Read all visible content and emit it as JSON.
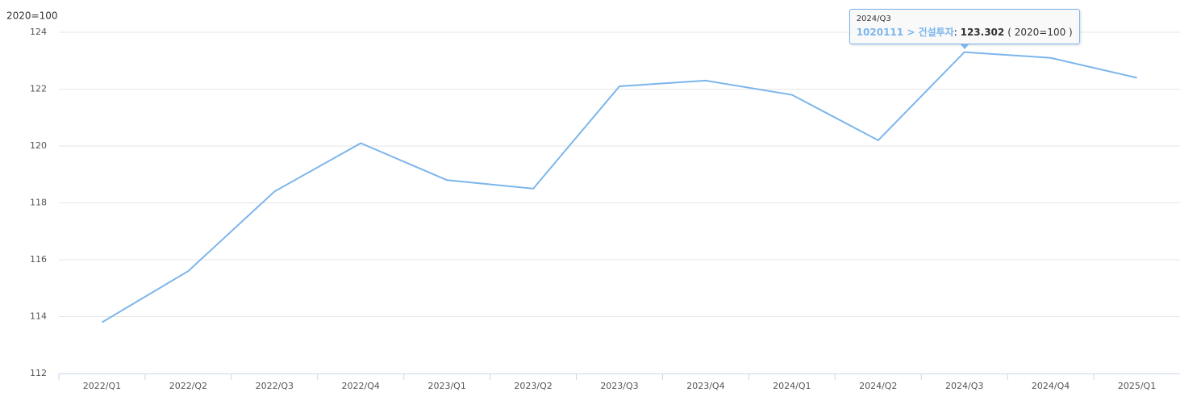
{
  "chart_data": {
    "type": "line",
    "y_label": "2020=100",
    "categories": [
      "2022/Q1",
      "2022/Q2",
      "2022/Q3",
      "2022/Q4",
      "2023/Q1",
      "2023/Q2",
      "2023/Q3",
      "2023/Q4",
      "2024/Q1",
      "2024/Q2",
      "2024/Q3",
      "2024/Q4",
      "2025/Q1"
    ],
    "series": [
      {
        "name": "1020111 > 건설투자",
        "color": "#7cb5ec",
        "values": [
          113.8,
          115.6,
          118.4,
          120.1,
          118.8,
          118.5,
          122.1,
          122.3,
          121.8,
          120.2,
          123.302,
          123.1,
          122.4
        ]
      }
    ],
    "ylim": [
      112,
      124
    ],
    "yticks": [
      112,
      114,
      116,
      118,
      120,
      122,
      124
    ],
    "grid": true,
    "tooltip": {
      "category": "2024/Q3",
      "separator": ":",
      "unit": "( 2020=100 )"
    }
  }
}
